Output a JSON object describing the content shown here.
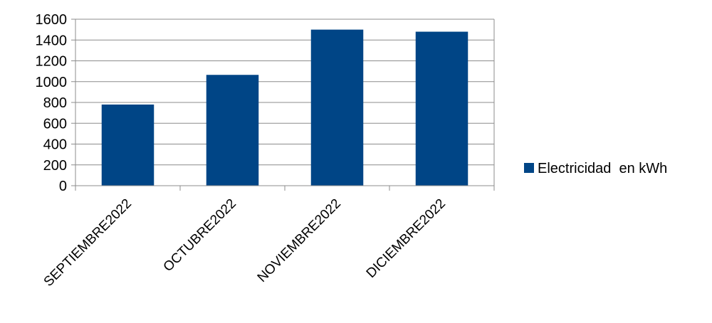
{
  "chart_data": {
    "type": "bar",
    "title": "",
    "xlabel": "",
    "ylabel": "",
    "categories": [
      "SEPTIEMBRE2022",
      "OCTUBRE2022",
      "NOVIEMBRE2022",
      "DICIEMBRE2022"
    ],
    "series": [
      {
        "name": "Electricidad  en kWh",
        "values": [
          780,
          1065,
          1500,
          1480
        ],
        "color": "#004586"
      }
    ],
    "ylim": [
      0,
      1600
    ],
    "yticks": [
      0,
      200,
      400,
      600,
      800,
      1000,
      1200,
      1400,
      1600
    ],
    "grid": true,
    "legend_position": "right"
  }
}
